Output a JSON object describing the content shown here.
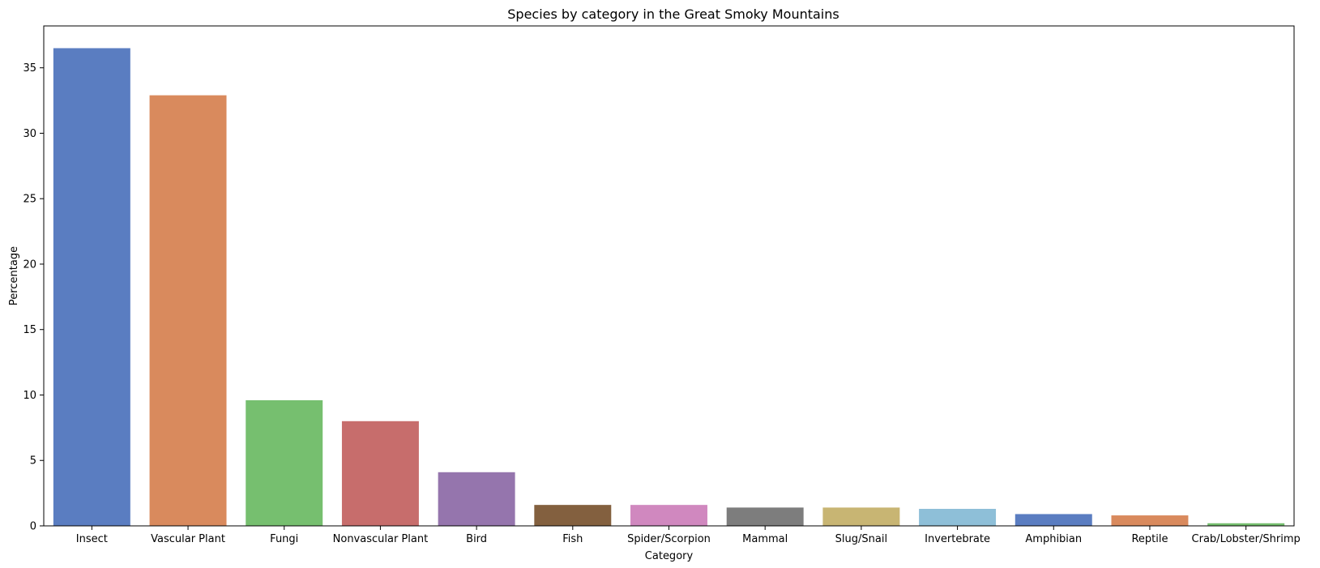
{
  "chart_data": {
    "type": "bar",
    "title": "Species by category in the Great Smoky Mountains",
    "xlabel": "Category",
    "ylabel": "Percentage",
    "ylim": [
      0,
      38.2
    ],
    "yticks": [
      0,
      5,
      10,
      15,
      20,
      25,
      30,
      35
    ],
    "grid": false,
    "legend": "none",
    "categories": [
      "Insect",
      "Vascular Plant",
      "Fungi",
      "Nonvascular Plant",
      "Bird",
      "Fish",
      "Spider/Scorpion",
      "Mammal",
      "Slug/Snail",
      "Invertebrate",
      "Amphibian",
      "Reptile",
      "Crab/Lobster/Shrimp"
    ],
    "values": [
      36.5,
      32.9,
      9.6,
      8.0,
      4.1,
      1.6,
      1.6,
      1.4,
      1.4,
      1.3,
      0.9,
      0.8,
      0.2
    ],
    "colors": [
      "#5a7dc1",
      "#d98a5d",
      "#76bf6f",
      "#c76d6c",
      "#9575ad",
      "#83603f",
      "#d088bf",
      "#7d7d7d",
      "#c8b573",
      "#8ebfd8",
      "#5a7dc1",
      "#d98a5d",
      "#76bf6f"
    ]
  }
}
